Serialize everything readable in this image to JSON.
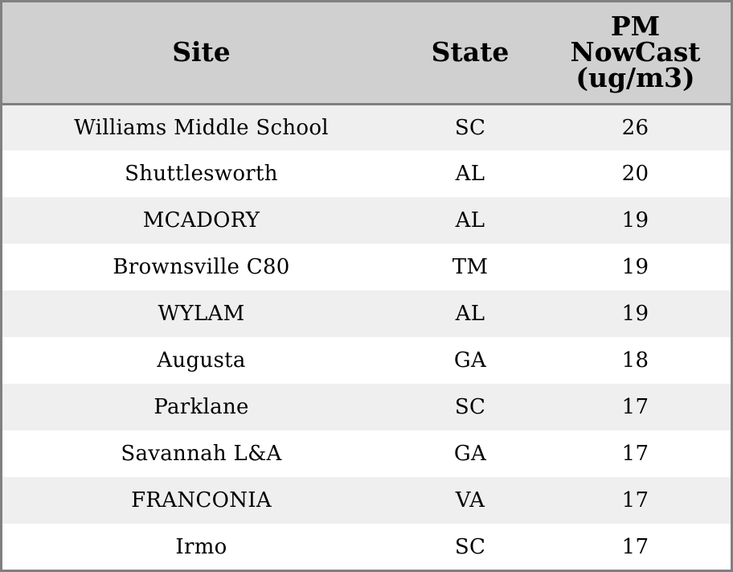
{
  "chart_data": {
    "type": "table",
    "columns": [
      "Site",
      "State",
      "PM NowCast (ug/m3)"
    ],
    "header_lines": {
      "site": [
        "Site"
      ],
      "state": [
        "State"
      ],
      "pm": [
        "PM",
        "NowCast",
        "(ug/m3)"
      ]
    },
    "rows": [
      {
        "site": "Williams Middle School",
        "state": "SC",
        "pm": 26
      },
      {
        "site": "Shuttlesworth",
        "state": "AL",
        "pm": 20
      },
      {
        "site": "MCADORY",
        "state": "AL",
        "pm": 19
      },
      {
        "site": "Brownsville C80",
        "state": "TM",
        "pm": 19
      },
      {
        "site": "WYLAM",
        "state": "AL",
        "pm": 19
      },
      {
        "site": "Augusta",
        "state": "GA",
        "pm": 18
      },
      {
        "site": "Parklane",
        "state": "SC",
        "pm": 17
      },
      {
        "site": "Savannah L&A",
        "state": "GA",
        "pm": 17
      },
      {
        "site": "FRANCONIA",
        "state": "VA",
        "pm": 17
      },
      {
        "site": "Irmo",
        "state": "SC",
        "pm": 17
      }
    ]
  },
  "colors": {
    "header_background": "#d0d0d0",
    "row_shaded": "#efefef",
    "row_plain": "#ffffff",
    "border": "#808080",
    "text": "#000000"
  }
}
